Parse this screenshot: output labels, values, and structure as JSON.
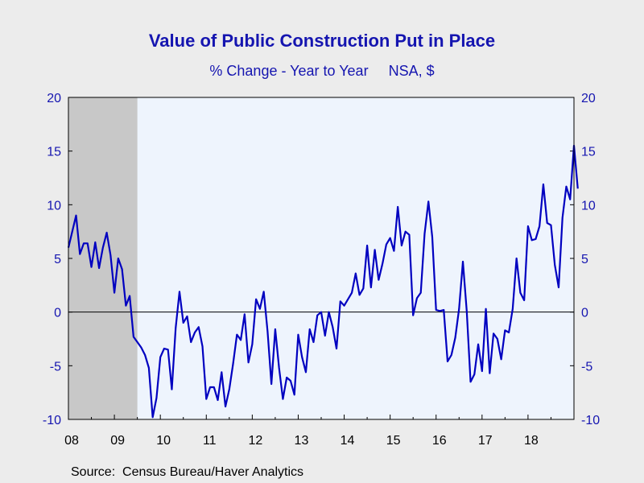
{
  "chart_data": {
    "type": "line",
    "title": "Value of Public Construction Put in Place",
    "subtitle": "% Change - Year to Year     NSA, $",
    "source": "Source:  Census Bureau/Haver Analytics",
    "ylim": [
      -10,
      20
    ],
    "yticks": [
      "20",
      "15",
      "10",
      "5",
      "0",
      "-5",
      "-10"
    ],
    "ytick_values": [
      20,
      15,
      10,
      5,
      0,
      -5,
      -10
    ],
    "xlim": [
      2008.0,
      2019.0
    ],
    "x_tick_labels": [
      "08",
      "09",
      "10",
      "11",
      "12",
      "13",
      "14",
      "15",
      "16",
      "17",
      "18"
    ],
    "grid": false,
    "recession_shading": [
      2008.0,
      2009.5
    ],
    "colors": {
      "line": "#0000c0",
      "plot_bg": "#eef4fd",
      "recession": "#c8c8c8",
      "text": "#1515b0"
    },
    "series": [
      {
        "start": "2008-01",
        "frequency": "monthly",
        "values": [
          6.0,
          7.5,
          9.0,
          5.4,
          6.4,
          6.4,
          4.2,
          6.5,
          4.1,
          6.0,
          7.4,
          5.3,
          1.8,
          5.0,
          4.0,
          0.6,
          1.5,
          -2.3,
          -2.8,
          -3.3,
          -4.0,
          -5.2,
          -9.8,
          -8.0,
          -4.2,
          -3.4,
          -3.5,
          -7.2,
          -1.5,
          1.9,
          -1.0,
          -0.4,
          -2.8,
          -1.9,
          -1.4,
          -3.2,
          -8.1,
          -7.0,
          -7.0,
          -8.2,
          -5.6,
          -8.8,
          -7.2,
          -4.8,
          -2.1,
          -2.6,
          -0.2,
          -4.7,
          -3.0,
          1.2,
          0.3,
          1.9,
          -1.8,
          -6.7,
          -1.6,
          -5.2,
          -8.1,
          -6.1,
          -6.4,
          -7.7,
          -2.1,
          -4.2,
          -5.6,
          -1.6,
          -2.8,
          -0.3,
          0.0,
          -2.2,
          0.0,
          -1.4,
          -3.4,
          1.0,
          0.6,
          1.2,
          1.8,
          3.6,
          1.6,
          2.2,
          6.2,
          2.3,
          5.8,
          3.0,
          4.5,
          6.3,
          6.9,
          5.7,
          9.8,
          6.2,
          7.5,
          7.2,
          -0.3,
          1.3,
          1.8,
          7.3,
          10.3,
          7.0,
          0.2,
          0.1,
          0.2,
          -4.6,
          -4.0,
          -2.4,
          0.3,
          4.7,
          0.1,
          -6.5,
          -5.8,
          -3.0,
          -5.5,
          0.3,
          -5.7,
          -2.0,
          -2.5,
          -4.4,
          -1.7,
          -1.9,
          0.3,
          5.0,
          1.8,
          1.1,
          8.0,
          6.7,
          6.8,
          8.0,
          11.9,
          8.3,
          8.1,
          4.4,
          2.3,
          8.8,
          11.7,
          10.5,
          15.5,
          11.5
        ]
      }
    ]
  }
}
